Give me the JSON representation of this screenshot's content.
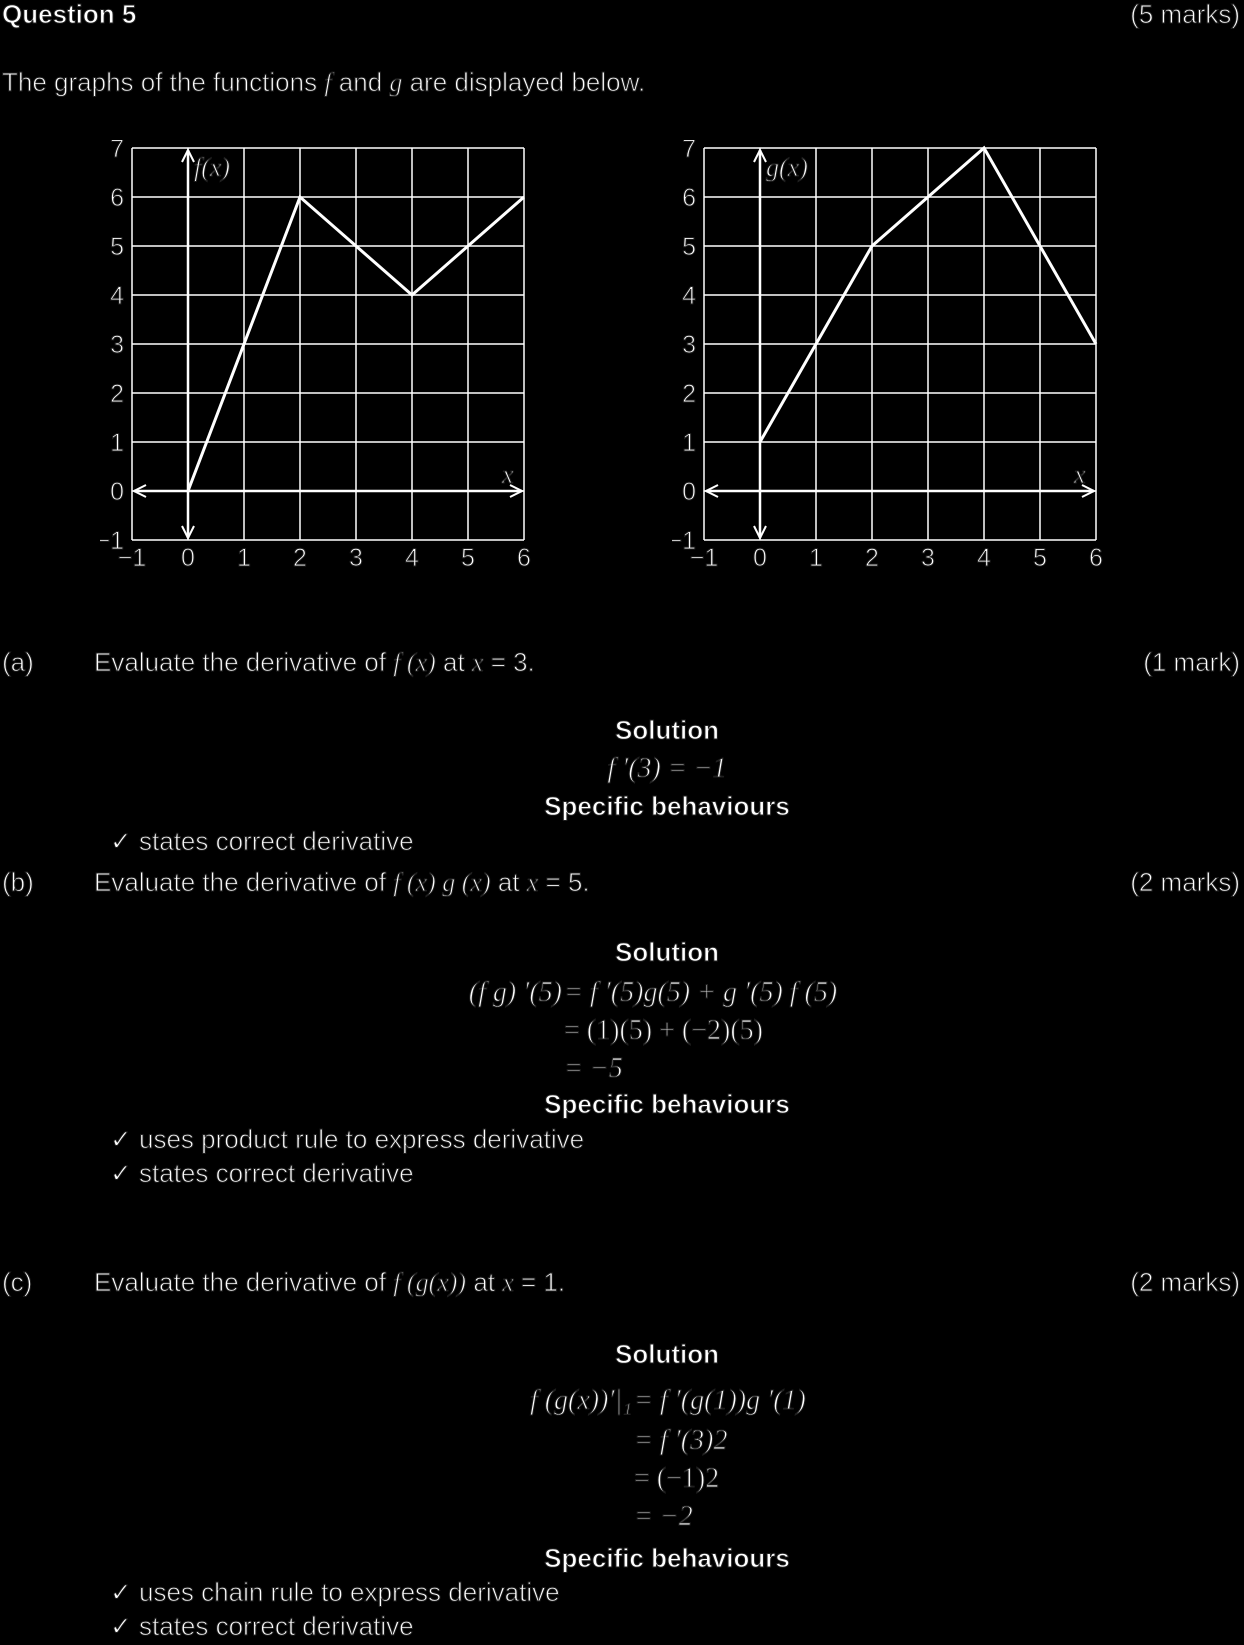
{
  "header": {
    "question": "Question 5",
    "marks": "(5 marks)"
  },
  "intro": {
    "prefix": "The graphs of the functions ",
    "f": "f",
    "mid": " and ",
    "g": "g",
    "suffix": " are displayed below."
  },
  "chart_data": [
    {
      "type": "line",
      "ylabel": "f(x)",
      "xlabel": "x",
      "x_ticks": [
        "−1",
        "0",
        "1",
        "2",
        "3",
        "4",
        "5",
        "6"
      ],
      "y_ticks": [
        "−1",
        "0",
        "1",
        "2",
        "3",
        "4",
        "5",
        "6",
        "7"
      ],
      "xlim": [
        -1,
        6
      ],
      "ylim": [
        -1,
        7
      ],
      "grid": true,
      "x": [
        0,
        2,
        4,
        6
      ],
      "y": [
        0,
        6,
        4,
        6
      ]
    },
    {
      "type": "line",
      "ylabel": "g(x)",
      "xlabel": "x",
      "x_ticks": [
        "−1",
        "0",
        "1",
        "2",
        "3",
        "4",
        "5",
        "6"
      ],
      "y_ticks": [
        "−1",
        "0",
        "1",
        "2",
        "3",
        "4",
        "5",
        "6",
        "7"
      ],
      "xlim": [
        -1,
        6
      ],
      "ylim": [
        -1,
        7
      ],
      "grid": true,
      "x": [
        0,
        2,
        4,
        6
      ],
      "y": [
        1,
        5,
        7,
        3
      ]
    }
  ],
  "parts": {
    "a": {
      "label": "(a)",
      "q_pre": "Evaluate the derivative of ",
      "q_fn": "f (x)",
      "q_at": " at ",
      "q_x": "x",
      "q_val": " = 3.",
      "marks": "(1 mark)",
      "solution_heading": "Solution",
      "lines": [
        "f ′(3) = −1"
      ],
      "behaviours_heading": "Specific behaviours",
      "behaviours": [
        "✓ states correct derivative"
      ]
    },
    "b": {
      "label": "(b)",
      "q_pre": "Evaluate the derivative of ",
      "q_fn": "f (x) g (x)",
      "q_at": " at ",
      "q_x": "x",
      "q_val": " = 5.",
      "marks": "(2 marks)",
      "solution_heading": "Solution",
      "line1_left": "(f g) ′(5) ",
      "line1_right": "= f ′(5)g(5) + g ′(5) f (5)",
      "line2": "= (1)(5) + (−2)(5)",
      "line3": "= −5",
      "behaviours_heading": "Specific behaviours",
      "behaviours": [
        "✓ uses product rule to express derivative",
        "✓ states correct derivative"
      ]
    },
    "c": {
      "label": "(c)",
      "q_pre": "Evaluate the derivative of ",
      "q_fn": "f (g(x))",
      "q_at": " at ",
      "q_x": "x",
      "q_val": " = 1.",
      "marks": "(2 marks)",
      "solution_heading": "Solution",
      "line1_left": "f (g(x))′|₁ ",
      "line1_right": "= f ′(g(1))g ′(1)",
      "line2": "= f ′(3)2",
      "line3": "= (−1)2",
      "line4": "= −2",
      "behaviours_heading": "Specific behaviours",
      "behaviours": [
        "✓ uses chain rule to express derivative",
        "✓ states correct derivative"
      ]
    }
  }
}
